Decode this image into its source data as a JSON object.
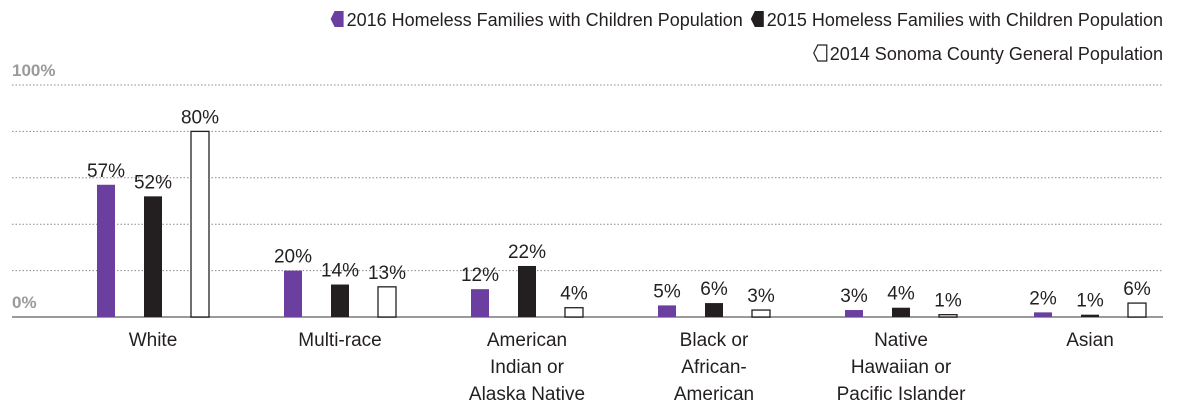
{
  "chart_data": {
    "type": "bar",
    "categories": [
      [
        "White"
      ],
      [
        "Multi-race"
      ],
      [
        "American",
        "Indian or",
        "Alaska Native"
      ],
      [
        "Black or",
        "African-",
        "American"
      ],
      [
        "Native",
        "Hawaiian or",
        "Pacific Islander"
      ],
      [
        "Asian"
      ]
    ],
    "series": [
      {
        "name": "2016 Homeless Families with Children Population",
        "values": [
          57,
          20,
          12,
          5,
          3,
          2
        ],
        "color": "#6b3fa0",
        "style": "filled"
      },
      {
        "name": "2015 Homeless Families with Children Population",
        "values": [
          52,
          14,
          22,
          6,
          4,
          1
        ],
        "color": "#231f20",
        "style": "filled"
      },
      {
        "name": "2014 Sonoma County General Population",
        "values": [
          80,
          13,
          4,
          3,
          1,
          6
        ],
        "color": "#231f20",
        "style": "outline"
      }
    ],
    "value_suffix": "%",
    "ylim": [
      0,
      100
    ],
    "y_tick_labels": {
      "top": "100%",
      "bottom": "0%"
    },
    "grid": "dotted-horizontal",
    "legend_position": "top-right"
  }
}
